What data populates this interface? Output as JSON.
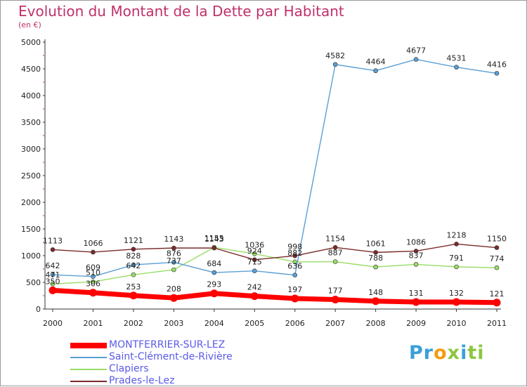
{
  "chart_data": {
    "type": "line",
    "title": "Evolution du Montant de la Dette par Habitant",
    "subtitle": "(en €)",
    "xlabel": "",
    "ylabel": "",
    "categories": [
      "2000",
      "2001",
      "2002",
      "2003",
      "2004",
      "2005",
      "2006",
      "2007",
      "2008",
      "2009",
      "2010",
      "2011"
    ],
    "ylim": [
      0,
      5000
    ],
    "yticks": [
      0,
      500,
      1000,
      1500,
      2000,
      2500,
      3000,
      3500,
      4000,
      4500,
      5000
    ],
    "grid": false,
    "legend_position": "bottom-left",
    "series": [
      {
        "name": "MONTFERRIER-SUR-LEZ",
        "color": "#ff0000",
        "values": [
          350,
          306,
          253,
          208,
          293,
          242,
          197,
          177,
          148,
          131,
          132,
          121
        ],
        "labels": [
          "350",
          "306",
          "253",
          "208",
          "293",
          "242",
          "197",
          "177",
          "148",
          "131",
          "132",
          "121"
        ]
      },
      {
        "name": "Saint-Clément-de-Rivière",
        "color": "#5a9fd4",
        "values": [
          642,
          609,
          828,
          876,
          684,
          715,
          636,
          4582,
          4464,
          4677,
          4531,
          4416
        ],
        "labels": [
          "642",
          "609",
          "828",
          "876",
          "684",
          "715",
          "636",
          "4582",
          "4464",
          "4677",
          "4531",
          "4416"
        ]
      },
      {
        "name": "Clapiers",
        "color": "#99dd66",
        "values": [
          471,
          510,
          642,
          737,
          1155,
          1036,
          882,
          887,
          788,
          837,
          791,
          774
        ],
        "labels": [
          "471",
          "510",
          "642",
          "737",
          "1155",
          "1036",
          "882",
          "887",
          "788",
          "837",
          "791",
          "774"
        ]
      },
      {
        "name": "Prades-le-Lez",
        "color": "#7a2a2a",
        "values": [
          1113,
          1066,
          1121,
          1143,
          1143,
          924,
          998,
          1154,
          1061,
          1086,
          1218,
          1150
        ],
        "labels": [
          "1113",
          "1066",
          "1121",
          "1143",
          "1143",
          "924",
          "998",
          "1154",
          "1061",
          "1086",
          "1218",
          "1150"
        ]
      }
    ]
  },
  "brand": {
    "letters": [
      "Pr",
      "o",
      "x",
      "i",
      "ti"
    ]
  }
}
